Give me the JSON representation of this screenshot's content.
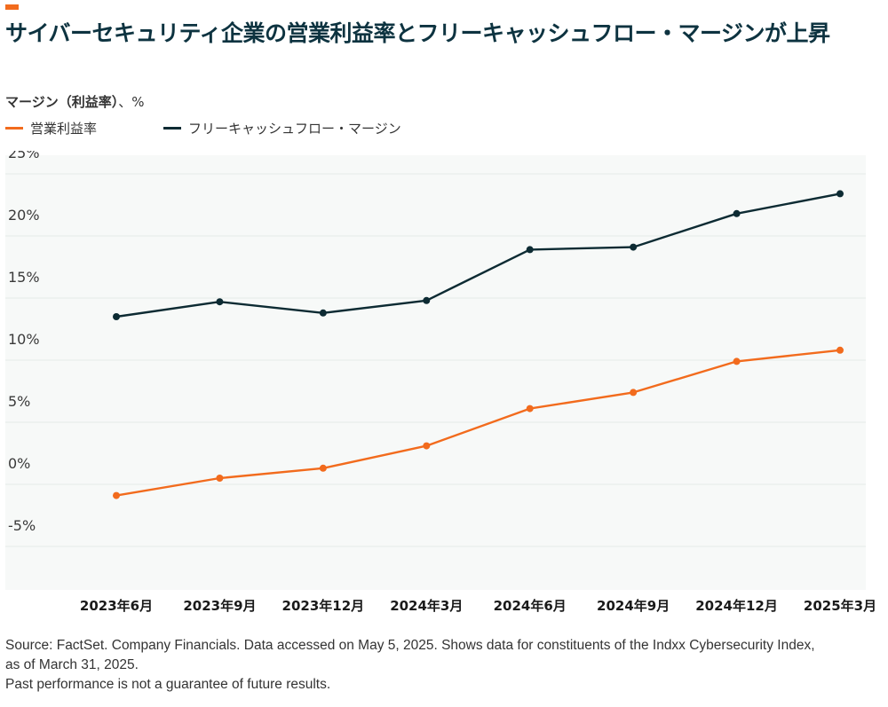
{
  "header": {
    "title": "サイバーセキュリティ企業の営業利益率とフリーキャッシュフロー・マージンが上昇",
    "unit_label_bold": "マージン（利益率）",
    "unit_label_rest": "、%"
  },
  "colors": {
    "accent": "#f26b1d",
    "dark": "#0d2b33",
    "plot_bg": "#f7f9f8",
    "grid": "#e6ebe9"
  },
  "chart_data": {
    "type": "line",
    "title": "サイバーセキュリティ企業の営業利益率とフリーキャッシュフロー・マージンが上昇",
    "ylabel": "マージン（利益率）、%",
    "categories": [
      "2023年6月",
      "2023年9月",
      "2023年12月",
      "2024年3月",
      "2024年6月",
      "2024年9月",
      "2024年12月",
      "2025年3月"
    ],
    "ylim": [
      -8.5,
      26.5
    ],
    "yticks": [
      25,
      20,
      15,
      10,
      5,
      0,
      -5
    ],
    "ytick_labels": [
      "25%",
      "20%",
      "15%",
      "10%",
      "5%",
      "0%",
      "-5%"
    ],
    "grid": true,
    "legend_position": "top-left",
    "series": [
      {
        "name": "営業利益率",
        "color": "#f26b1d",
        "values": [
          -0.9,
          0.5,
          1.3,
          3.1,
          6.1,
          7.4,
          9.9,
          10.8
        ]
      },
      {
        "name": "フリーキャッシュフロー・マージン",
        "color": "#0d2b33",
        "values": [
          13.5,
          14.7,
          13.8,
          14.8,
          18.9,
          19.1,
          21.8,
          23.4
        ]
      }
    ]
  },
  "footer": {
    "source_line1": "Source: FactSet. Company Financials. Data accessed on May 5, 2025. Shows data for constituents of the Indxx Cybersecurity Index,",
    "source_line2": "as of March 31, 2025.",
    "disclaimer": "Past performance is not a guarantee of future results."
  }
}
